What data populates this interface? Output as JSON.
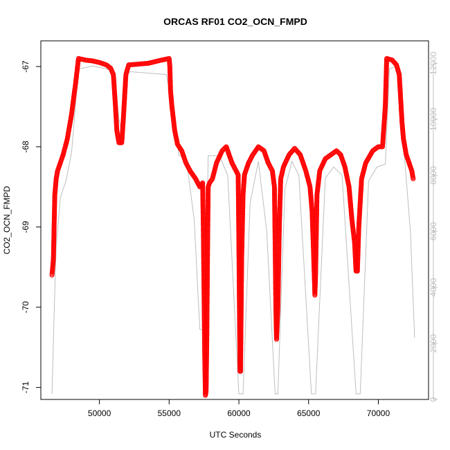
{
  "chart_data": {
    "type": "scatter",
    "title": "ORCAS RF01 CO2_OCN_FMPD",
    "xlabel": "UTC Seconds",
    "ylabel": "CO2_OCN_FMPD",
    "xlim": [
      45800,
      73600
    ],
    "ylim": [
      -71.15,
      -66.68
    ],
    "y2lim": [
      0,
      12800
    ],
    "xticks": [
      50000,
      55000,
      60000,
      65000,
      70000
    ],
    "xtick_labels": [
      "50000",
      "55000",
      "60000",
      "65000",
      "70000"
    ],
    "yticks": [
      -71,
      -70,
      -69,
      -68,
      -67
    ],
    "ytick_labels": [
      "-71",
      "-70",
      "-69",
      "-68",
      "-67"
    ],
    "y2ticks": [
      0,
      2000,
      4000,
      6000,
      8000,
      10000,
      12000
    ],
    "y2tick_labels": [
      "0",
      "2000",
      "4000",
      "6000",
      "8000",
      "10000",
      "12000"
    ],
    "grid": false,
    "colors": {
      "series": "#ff0000",
      "altitude": "#bebebe",
      "axis": "#000000",
      "right_axis": "#bebebe"
    },
    "series": [
      {
        "style": "points-with-line",
        "color": "#ff0000",
        "points": [
          [
            46600,
            -69.6
          ],
          [
            46700,
            -69.4
          ],
          [
            46750,
            -69.0
          ],
          [
            46800,
            -68.6
          ],
          [
            46900,
            -68.4
          ],
          [
            47000,
            -68.3
          ],
          [
            47200,
            -68.2
          ],
          [
            47400,
            -68.1
          ],
          [
            47700,
            -67.9
          ],
          [
            48000,
            -67.6
          ],
          [
            48300,
            -67.2
          ],
          [
            48500,
            -66.9
          ],
          [
            49000,
            -66.92
          ],
          [
            49500,
            -66.93
          ],
          [
            50000,
            -66.95
          ],
          [
            50500,
            -66.98
          ],
          [
            50800,
            -67.02
          ],
          [
            51000,
            -67.1
          ],
          [
            51150,
            -67.5
          ],
          [
            51250,
            -67.8
          ],
          [
            51400,
            -67.95
          ],
          [
            51600,
            -67.95
          ],
          [
            51700,
            -67.7
          ],
          [
            51900,
            -67.1
          ],
          [
            52100,
            -66.98
          ],
          [
            52800,
            -66.97
          ],
          [
            53500,
            -66.96
          ],
          [
            54200,
            -66.93
          ],
          [
            55000,
            -66.9
          ],
          [
            55050,
            -67.0
          ],
          [
            55100,
            -67.3
          ],
          [
            55200,
            -67.5
          ],
          [
            55400,
            -67.8
          ],
          [
            55600,
            -67.97
          ],
          [
            55900,
            -68.05
          ],
          [
            56200,
            -68.2
          ],
          [
            56500,
            -68.3
          ],
          [
            56900,
            -68.4
          ],
          [
            57200,
            -68.5
          ],
          [
            57400,
            -68.45
          ],
          [
            57450,
            -69.0
          ],
          [
            57500,
            -69.8
          ],
          [
            57550,
            -70.6
          ],
          [
            57600,
            -71.1
          ],
          [
            57650,
            -71.05
          ],
          [
            57700,
            -70.4
          ],
          [
            57760,
            -69.2
          ],
          [
            57800,
            -68.5
          ],
          [
            57900,
            -68.45
          ],
          [
            58100,
            -68.4
          ],
          [
            58400,
            -68.2
          ],
          [
            58800,
            -68.05
          ],
          [
            59100,
            -68.0
          ],
          [
            59500,
            -68.2
          ],
          [
            59800,
            -68.3
          ],
          [
            59950,
            -68.35
          ],
          [
            60000,
            -69.2
          ],
          [
            60050,
            -70.2
          ],
          [
            60080,
            -70.8
          ],
          [
            60120,
            -70.8
          ],
          [
            60200,
            -69.4
          ],
          [
            60300,
            -68.6
          ],
          [
            60400,
            -68.35
          ],
          [
            60700,
            -68.2
          ],
          [
            61000,
            -68.1
          ],
          [
            61400,
            -68.0
          ],
          [
            61800,
            -68.05
          ],
          [
            62100,
            -68.2
          ],
          [
            62400,
            -68.3
          ],
          [
            62550,
            -68.5
          ],
          [
            62600,
            -69.2
          ],
          [
            62650,
            -70.0
          ],
          [
            62700,
            -70.4
          ],
          [
            62750,
            -70.2
          ],
          [
            62800,
            -70.0
          ],
          [
            62900,
            -69.0
          ],
          [
            63000,
            -68.4
          ],
          [
            63200,
            -68.25
          ],
          [
            63600,
            -68.1
          ],
          [
            64000,
            -68.02
          ],
          [
            64400,
            -68.1
          ],
          [
            64800,
            -68.3
          ],
          [
            65100,
            -68.5
          ],
          [
            65250,
            -68.8
          ],
          [
            65350,
            -69.3
          ],
          [
            65450,
            -69.85
          ],
          [
            65500,
            -69.6
          ],
          [
            65600,
            -68.6
          ],
          [
            65800,
            -68.3
          ],
          [
            66200,
            -68.15
          ],
          [
            66600,
            -68.1
          ],
          [
            67000,
            -68.05
          ],
          [
            67300,
            -68.1
          ],
          [
            67600,
            -68.25
          ],
          [
            67900,
            -68.5
          ],
          [
            68100,
            -68.9
          ],
          [
            68300,
            -69.2
          ],
          [
            68400,
            -69.55
          ],
          [
            68500,
            -69.55
          ],
          [
            68600,
            -69.0
          ],
          [
            68800,
            -68.4
          ],
          [
            69100,
            -68.2
          ],
          [
            69600,
            -68.05
          ],
          [
            70000,
            -68.0
          ],
          [
            70300,
            -68.0
          ],
          [
            70500,
            -67.5
          ],
          [
            70600,
            -66.9
          ],
          [
            71000,
            -66.92
          ],
          [
            71300,
            -66.98
          ],
          [
            71500,
            -67.1
          ],
          [
            71600,
            -67.4
          ],
          [
            71700,
            -67.7
          ],
          [
            71800,
            -67.9
          ],
          [
            72000,
            -68.1
          ],
          [
            72200,
            -68.2
          ],
          [
            72400,
            -68.3
          ],
          [
            72500,
            -68.4
          ]
        ]
      },
      {
        "style": "line",
        "axis": "right",
        "color": "#bebebe",
        "points": [
          [
            46600,
            200
          ],
          [
            46750,
            3000
          ],
          [
            46900,
            5500
          ],
          [
            47200,
            7200
          ],
          [
            47600,
            7800
          ],
          [
            48000,
            8800
          ],
          [
            48500,
            11800
          ],
          [
            49500,
            11900
          ],
          [
            50500,
            11800
          ],
          [
            50900,
            11700
          ],
          [
            51200,
            11000
          ],
          [
            51400,
            10000
          ],
          [
            51600,
            9500
          ],
          [
            51800,
            11500
          ],
          [
            52200,
            11700
          ],
          [
            54800,
            11600
          ],
          [
            55100,
            10800
          ],
          [
            55400,
            9900
          ],
          [
            55700,
            8700
          ],
          [
            56200,
            8700
          ],
          [
            56800,
            6400
          ],
          [
            57200,
            2500
          ],
          [
            57600,
            2500
          ],
          [
            57800,
            8700
          ],
          [
            58600,
            8700
          ],
          [
            59200,
            8000
          ],
          [
            60000,
            200
          ],
          [
            60300,
            200
          ],
          [
            60800,
            7000
          ],
          [
            61400,
            8500
          ],
          [
            62000,
            6000
          ],
          [
            62600,
            200
          ],
          [
            62800,
            200
          ],
          [
            63300,
            7500
          ],
          [
            63800,
            8500
          ],
          [
            64300,
            8000
          ],
          [
            65200,
            200
          ],
          [
            65500,
            200
          ],
          [
            66200,
            7900
          ],
          [
            66800,
            8300
          ],
          [
            67400,
            8000
          ],
          [
            68400,
            200
          ],
          [
            68700,
            200
          ],
          [
            69300,
            7800
          ],
          [
            69900,
            8300
          ],
          [
            70500,
            8400
          ],
          [
            70800,
            11800
          ],
          [
            71300,
            11900
          ],
          [
            71600,
            10900
          ],
          [
            71900,
            8500
          ],
          [
            72300,
            6000
          ],
          [
            72600,
            2200
          ]
        ]
      }
    ]
  }
}
